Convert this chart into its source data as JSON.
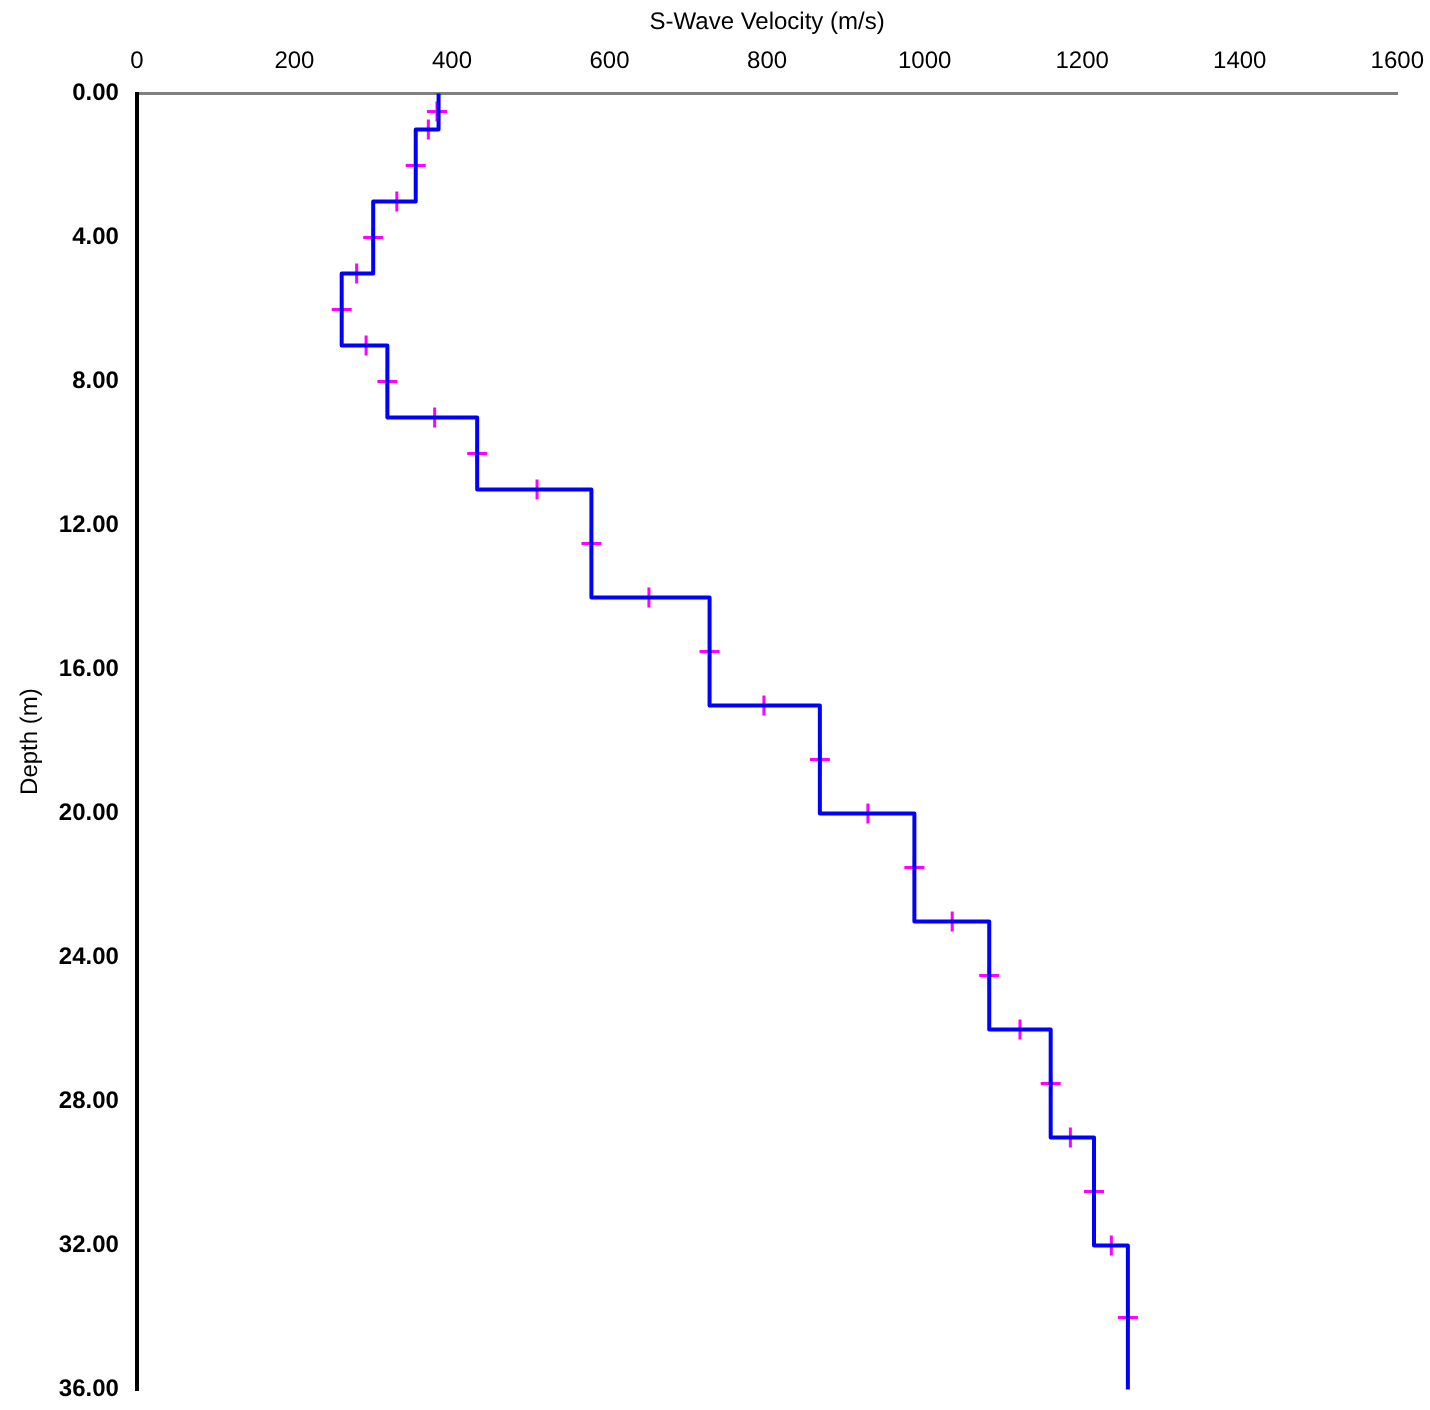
{
  "chart_data": {
    "type": "line",
    "xlabel": "S-Wave Velocity (m/s)",
    "ylabel": "Depth (m)",
    "xlim": [
      0,
      1600
    ],
    "xticks": [
      0,
      200,
      400,
      600,
      800,
      1000,
      1200,
      1400,
      1600
    ],
    "ylim": [
      36,
      0
    ],
    "yticks": [
      {
        "value": 0,
        "label": "0.00"
      },
      {
        "value": 4,
        "label": "4.00"
      },
      {
        "value": 8,
        "label": "8.00"
      },
      {
        "value": 12,
        "label": "12.00"
      },
      {
        "value": 16,
        "label": "16.00"
      },
      {
        "value": 20,
        "label": "20.00"
      },
      {
        "value": 24,
        "label": "24.00"
      },
      {
        "value": 28,
        "label": "28.00"
      },
      {
        "value": 32,
        "label": "32.00"
      },
      {
        "value": 36,
        "label": "36.00"
      }
    ],
    "grid": false,
    "legend": false,
    "series": [
      {
        "color": "#0000ff",
        "marker": "none",
        "x": [
          383,
          383,
          354,
          354,
          300,
          300,
          260,
          260,
          318,
          318,
          432,
          432,
          577,
          577,
          727,
          727,
          867,
          867,
          987,
          987,
          1082,
          1082,
          1160,
          1160,
          1215,
          1215,
          1258,
          1258
        ],
        "values": [
          0,
          1,
          1,
          3,
          3,
          5,
          5,
          7,
          7,
          9,
          9,
          11,
          11,
          14,
          14,
          17,
          17,
          20,
          20,
          23,
          23,
          26,
          26,
          29,
          29,
          32,
          32,
          36
        ]
      },
      {
        "type": "scatter",
        "color": "#ff00ff",
        "marker": "cross",
        "x": [
          381,
          370,
          354,
          330,
          300,
          279,
          260,
          291,
          318,
          378,
          432,
          508,
          577,
          650,
          727,
          796,
          867,
          928,
          987,
          1035,
          1082,
          1121,
          1160,
          1185,
          1215,
          1237,
          1258
        ],
        "values": [
          0.5,
          1,
          2,
          3,
          4,
          5,
          6,
          7,
          8,
          9,
          10,
          11,
          12.5,
          14,
          15.5,
          17,
          18.5,
          20,
          21.5,
          23,
          24.5,
          26,
          27.5,
          29,
          30.5,
          32,
          34
        ]
      }
    ]
  }
}
